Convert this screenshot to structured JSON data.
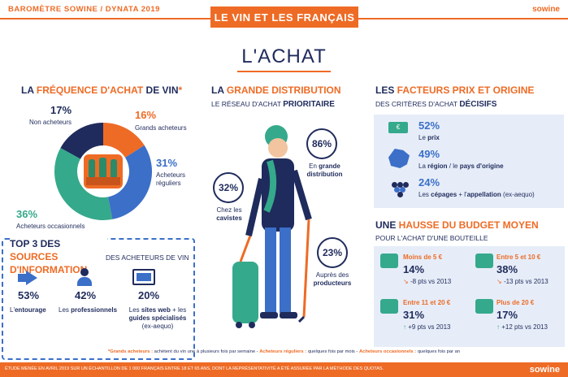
{
  "header": {
    "left": "BAROMÈTRE SOWINE / DYNATA 2019",
    "banner": "LE VIN ET LES FRANÇAIS",
    "brand": "sowine"
  },
  "page_title": "L'ACHAT",
  "frequence": {
    "title_prefix": "LA ",
    "title_highlight": "FRÉQUENCE D'ACHAT",
    "title_suffix": " DE VIN",
    "asterisk": "*",
    "segments": [
      {
        "pct": "17%",
        "label": "Non acheteurs",
        "value": 17,
        "color": "#1f2b5c"
      },
      {
        "pct": "16%",
        "label": "Grands acheteurs",
        "value": 16,
        "color": "#ee6b25"
      },
      {
        "pct": "31%",
        "label": "Acheteurs réguliers",
        "value": 31,
        "color": "#3b6fc8"
      },
      {
        "pct": "36%",
        "label": "Acheteurs occasionnels",
        "value": 36,
        "color": "#35a98b"
      }
    ]
  },
  "top3": {
    "title_prefix": "TOP 3 DES ",
    "title_highlight": "SOURCES D'INFORMATION",
    "subtitle": "DES ACHETEURS DE VIN",
    "items": [
      {
        "pct": "53%",
        "label_plain": "L'",
        "label_bold": "entourage"
      },
      {
        "pct": "42%",
        "label_plain": "Les ",
        "label_bold": "professionnels"
      },
      {
        "pct": "20%",
        "label_plain": "Les ",
        "label_bold": "sites web",
        "label_plain2": " + les ",
        "label_bold2": "guides spécialisés",
        "label_extra": "(ex-aequo)"
      }
    ]
  },
  "grande_distribution": {
    "title_prefix": "LA ",
    "title_highlight": "GRANDE DISTRIBUTION",
    "subtitle_plain": "LE RÉSEAU D'ACHAT ",
    "subtitle_bold": "PRIORITAIRE",
    "stats": [
      {
        "pct": "86%",
        "label_plain": "En ",
        "label_bold": "grande distribution"
      },
      {
        "pct": "32%",
        "label_plain": "Chez les ",
        "label_bold": "cavistes"
      },
      {
        "pct": "23%",
        "label_plain": "Auprès des ",
        "label_bold": "producteurs"
      }
    ]
  },
  "facteurs": {
    "title_prefix": "LES ",
    "title_highlight": "FACTEURS PRIX ET ORIGINE",
    "subtitle_plain": "DES CRITÈRES D'ACHAT ",
    "subtitle_bold": "DÉCISIFS",
    "items": [
      {
        "pct": "52%",
        "label": "Le ",
        "bold": "prix",
        "icon": "price-tag-icon"
      },
      {
        "pct": "49%",
        "label": "La ",
        "bold": "région",
        "label2": " / le ",
        "bold2": "pays d'origine",
        "icon": "france-map-icon"
      },
      {
        "pct": "24%",
        "label": "Les ",
        "bold": "cépages",
        "label2": " + l'",
        "bold2": "appellation",
        "label3": " (ex-aequo)",
        "icon": "grapes-icon"
      }
    ]
  },
  "budget": {
    "title_prefix": "UNE ",
    "title_highlight": "HAUSSE DU BUDGET MOYEN",
    "subtitle": "POUR L'ACHAT D'UNE BOUTEILLE",
    "cards": [
      {
        "range": "Moins de 5 €",
        "pct": "14%",
        "trend": "-8 pts vs 2013",
        "direction": "down"
      },
      {
        "range": "Entre 5 et 10 €",
        "pct": "38%",
        "trend": "-13 pts vs 2013",
        "direction": "down"
      },
      {
        "range": "Entre 11 et 20 €",
        "pct": "31%",
        "trend": "+9 pts vs 2013",
        "direction": "up"
      },
      {
        "range": "Plus de 20 €",
        "pct": "17%",
        "trend": "+12 pts vs 2013",
        "direction": "up"
      }
    ]
  },
  "footnote": {
    "t1": "*Grands acheteurs :",
    "d1": " achètent du vin une à plusieurs fois par semaine - ",
    "t2": "Acheteurs réguliers :",
    "d2": " quelques fois par mois - ",
    "t3": "Acheteurs occasionnels :",
    "d3": " quelques fois par an"
  },
  "bottom": {
    "text": "ÉTUDE MENÉE EN AVRIL 2019 SUR UN ÉCHANTILLON DE 1 000 FRANÇAIS ENTRE 18 ET 65 ANS, DONT LA REPRÉSENTATIVITÉ A ÉTÉ ASSURÉE PAR LA MÉTHODE DES QUOTAS.",
    "brand": "sowine"
  },
  "colors": {
    "orange": "#ee6b25",
    "navy": "#1f2b5c",
    "blue": "#3b6fc8",
    "teal": "#35a98b",
    "panel": "#e6edf8"
  }
}
